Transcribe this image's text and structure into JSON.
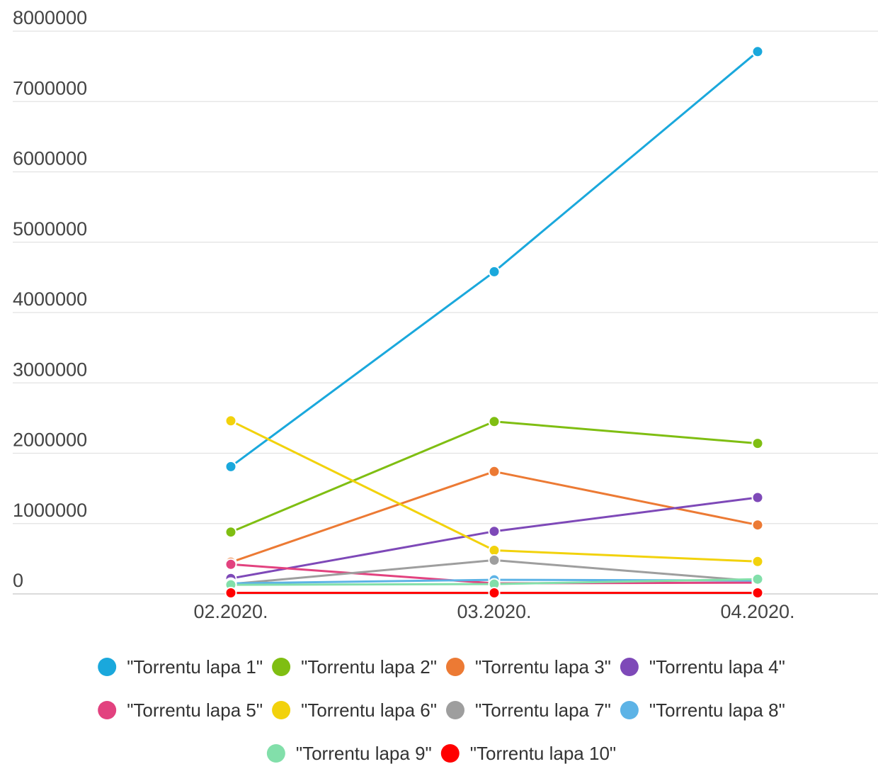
{
  "chart_data": {
    "type": "line",
    "title": "",
    "xlabel": "",
    "ylabel": "",
    "categories": [
      "02.2020.",
      "03.2020.",
      "04.2020."
    ],
    "ylim": [
      0,
      8000000
    ],
    "yticks": [
      "0",
      "1000000",
      "2000000",
      "3000000",
      "4000000",
      "5000000",
      "6000000",
      "7000000",
      "8000000"
    ],
    "grid": true,
    "legend": "bottom",
    "series": [
      {
        "name": "\"Torrentu lapa 1\"",
        "color": "#1aa8dc",
        "values": [
          1810000,
          4580000,
          7710000
        ]
      },
      {
        "name": "\"Torrentu lapa 2\"",
        "color": "#7fbe12",
        "values": [
          880000,
          2450000,
          2140000
        ]
      },
      {
        "name": "\"Torrentu lapa 3\"",
        "color": "#ec7a34",
        "values": [
          450000,
          1740000,
          980000
        ]
      },
      {
        "name": "\"Torrentu lapa 4\"",
        "color": "#7e49b8",
        "values": [
          220000,
          890000,
          1370000
        ]
      },
      {
        "name": "\"Torrentu lapa 5\"",
        "color": "#e2427f",
        "values": [
          420000,
          150000,
          160000
        ]
      },
      {
        "name": "\"Torrentu lapa 6\"",
        "color": "#f2d20c",
        "values": [
          2460000,
          620000,
          460000
        ]
      },
      {
        "name": "\"Torrentu lapa 7\"",
        "color": "#9e9e9e",
        "values": [
          140000,
          480000,
          180000
        ]
      },
      {
        "name": "\"Torrentu lapa 8\"",
        "color": "#5db3e6",
        "values": [
          150000,
          200000,
          190000
        ]
      },
      {
        "name": "\"Torrentu lapa 9\"",
        "color": "#82dfaa",
        "values": [
          130000,
          140000,
          210000
        ]
      },
      {
        "name": "\"Torrentu lapa 10\"",
        "color": "#ff0000",
        "values": [
          15000,
          15000,
          15000
        ]
      }
    ]
  }
}
